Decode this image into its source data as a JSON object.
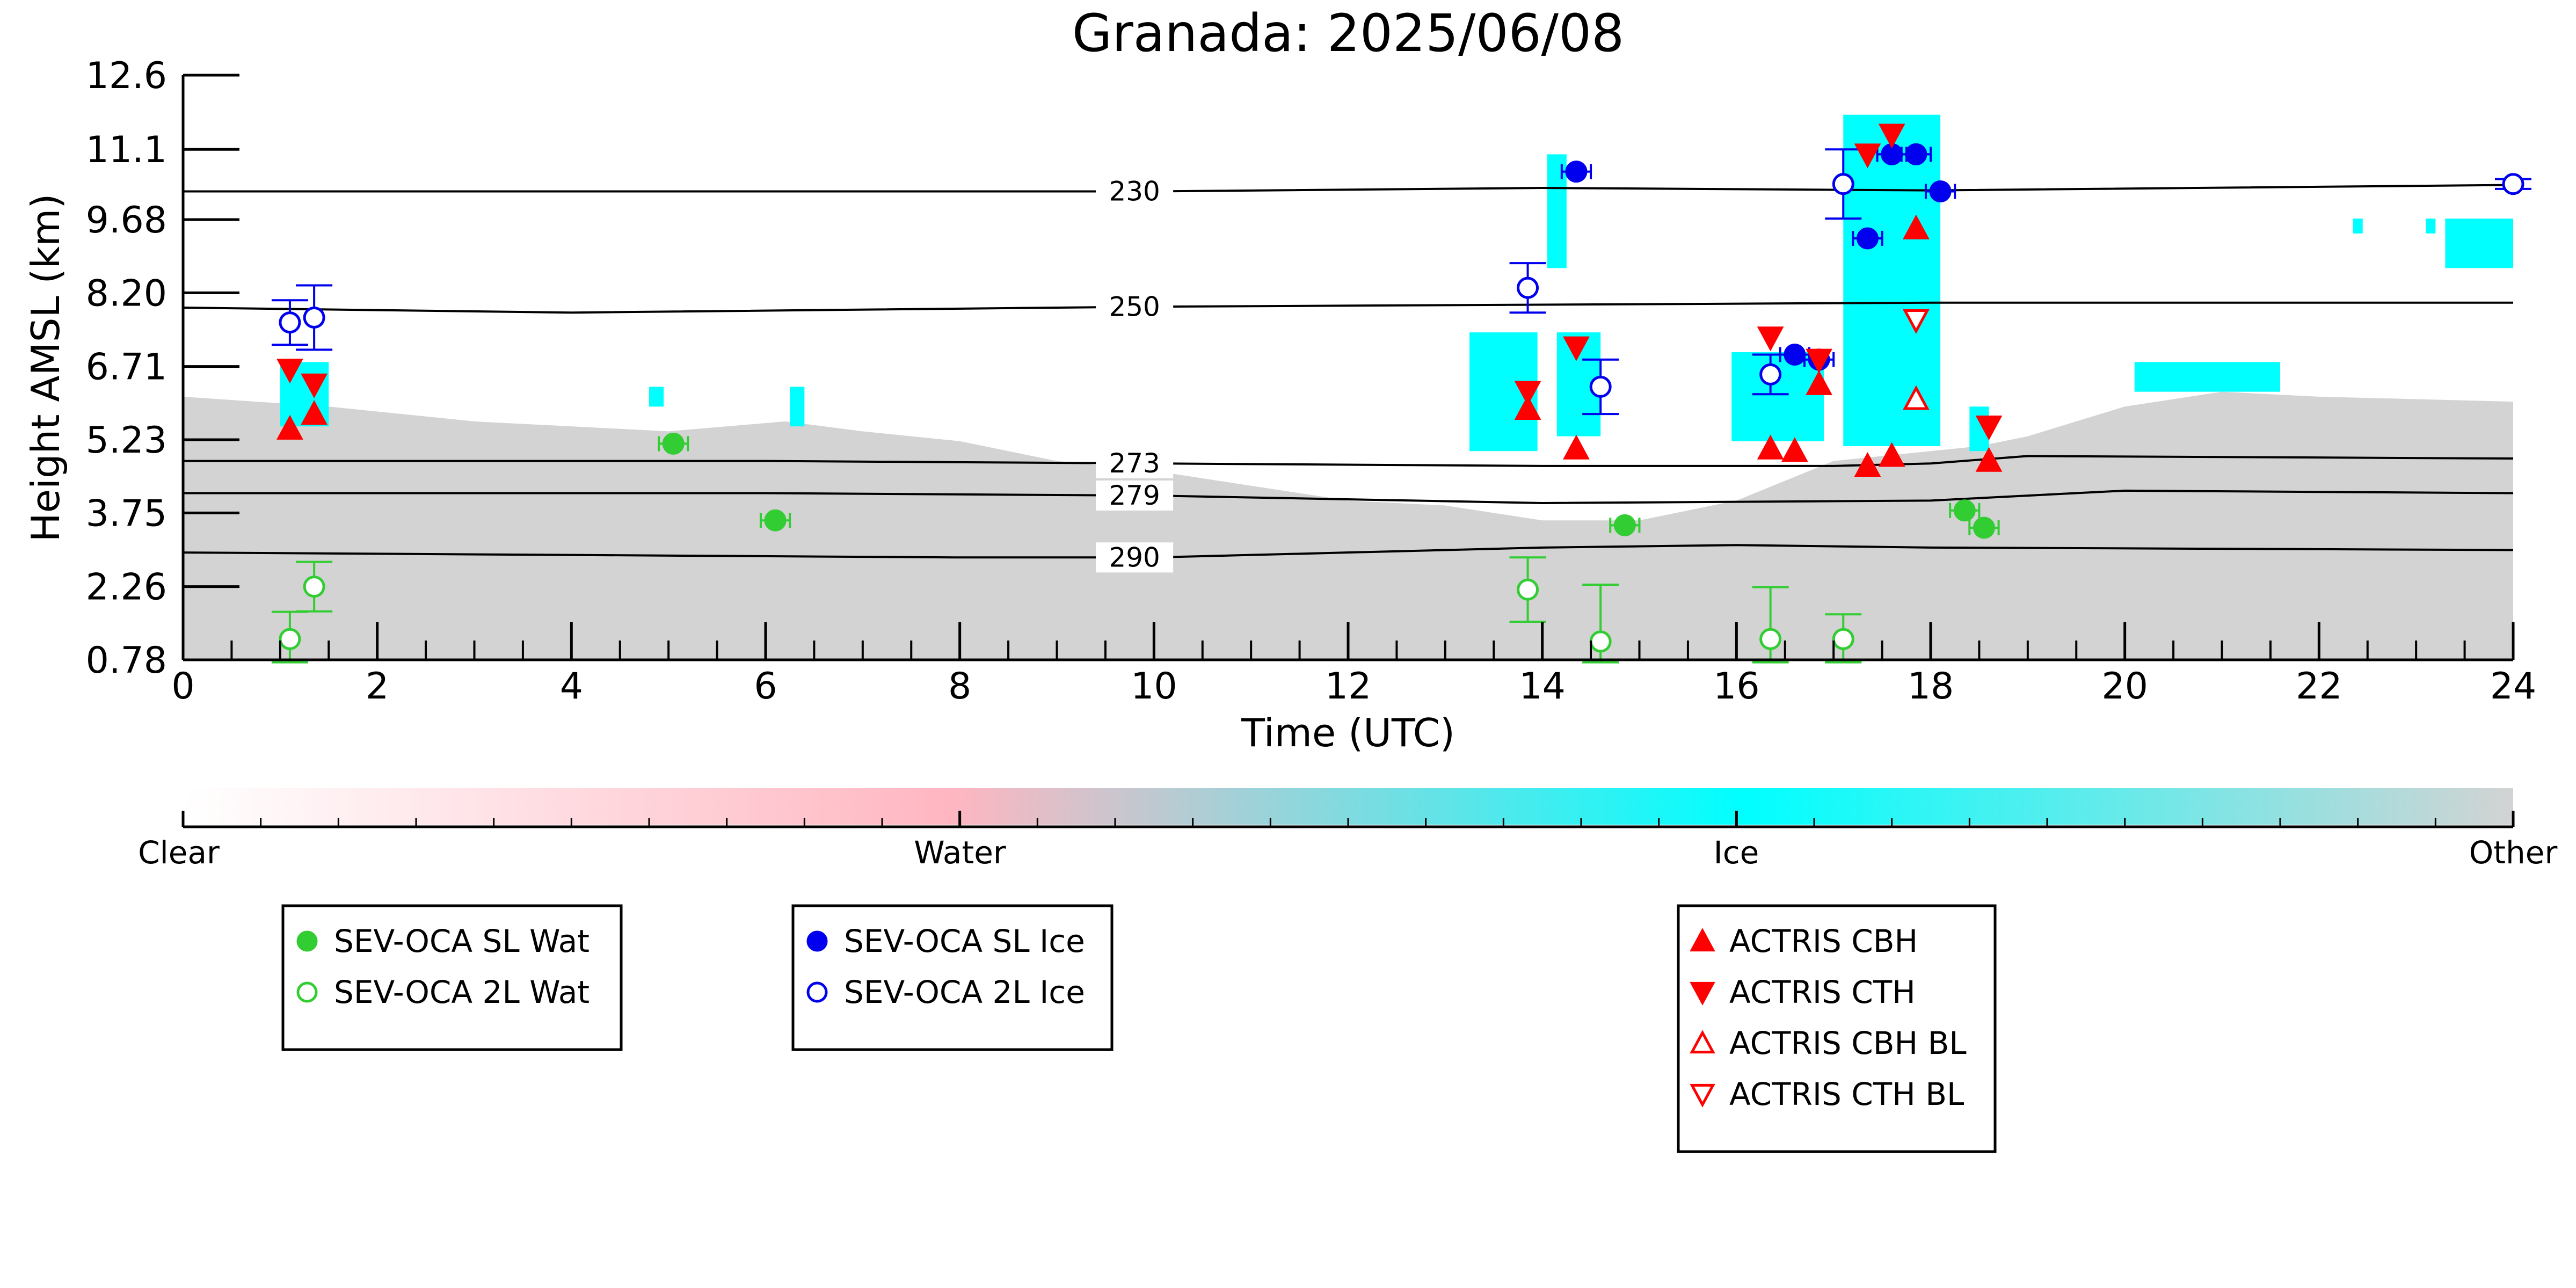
{
  "chart_data": {
    "type": "scatter",
    "title": "Granada: 2025/06/08",
    "xlabel": "Time (UTC)",
    "ylabel": "Height AMSL (km)",
    "xlim": [
      0,
      24
    ],
    "ylim": [
      0.78,
      12.6
    ],
    "xticks": [
      0,
      2,
      4,
      6,
      8,
      10,
      12,
      14,
      16,
      18,
      20,
      22,
      24
    ],
    "yticks": [
      0.78,
      2.26,
      3.75,
      5.23,
      6.71,
      8.2,
      9.68,
      11.1,
      12.6
    ],
    "ytick_labels": [
      "0.78",
      "2.26",
      "3.75",
      "5.23",
      "6.71",
      "8.20",
      "9.68",
      "11.1",
      "12.6"
    ],
    "grid": false,
    "background_field": {
      "description": "cloud phase classification",
      "classes": [
        "Clear",
        "Water",
        "Ice",
        "Other"
      ],
      "colors": {
        "Clear": "#ffffff",
        "Water": "#ffb6c1",
        "Ice": "#00ffff",
        "Other": "#d3d3d3"
      },
      "other_boundary_top_km": [
        [
          0.0,
          6.1
        ],
        [
          1.5,
          5.9
        ],
        [
          3.0,
          5.6
        ],
        [
          5.0,
          5.4
        ],
        [
          6.2,
          5.6
        ],
        [
          7.0,
          5.4
        ],
        [
          8.0,
          5.2
        ],
        [
          9.0,
          4.8
        ],
        [
          10.0,
          4.6
        ],
        [
          11.0,
          4.3
        ],
        [
          12.0,
          4.0
        ],
        [
          13.0,
          3.9
        ],
        [
          14.0,
          3.6
        ],
        [
          15.0,
          3.6
        ],
        [
          16.0,
          4.0
        ],
        [
          17.0,
          4.8
        ],
        [
          18.5,
          5.1
        ],
        [
          19.0,
          5.3
        ],
        [
          20.0,
          5.9
        ],
        [
          21.0,
          6.2
        ],
        [
          22.0,
          6.1
        ],
        [
          24.0,
          6.0
        ]
      ],
      "ice_regions": [
        {
          "x": [
            1.0,
            1.5
          ],
          "y": [
            5.5,
            6.8
          ]
        },
        {
          "x": [
            4.8,
            4.95
          ],
          "y": [
            5.9,
            6.3
          ]
        },
        {
          "x": [
            6.25,
            6.4
          ],
          "y": [
            5.5,
            6.3
          ]
        },
        {
          "x": [
            13.25,
            13.95
          ],
          "y": [
            5.0,
            7.4
          ]
        },
        {
          "x": [
            14.05,
            14.25
          ],
          "y": [
            8.7,
            11.0
          ]
        },
        {
          "x": [
            14.15,
            14.6
          ],
          "y": [
            5.3,
            7.4
          ]
        },
        {
          "x": [
            15.95,
            16.9
          ],
          "y": [
            5.2,
            7.0
          ]
        },
        {
          "x": [
            17.1,
            18.1
          ],
          "y": [
            5.1,
            11.8
          ]
        },
        {
          "x": [
            18.4,
            18.6
          ],
          "y": [
            5.0,
            5.9
          ]
        },
        {
          "x": [
            20.1,
            21.6
          ],
          "y": [
            6.2,
            6.8
          ]
        },
        {
          "x": [
            22.35,
            22.45
          ],
          "y": [
            9.4,
            9.7
          ]
        },
        {
          "x": [
            23.1,
            23.2
          ],
          "y": [
            9.4,
            9.7
          ]
        },
        {
          "x": [
            23.3,
            24.0
          ],
          "y": [
            8.7,
            9.7
          ]
        },
        {
          "x": [
            23.95,
            24.0
          ],
          "y": [
            10.2,
            10.5
          ]
        }
      ]
    },
    "isotherms": [
      {
        "label": "230",
        "label_x": 9.8,
        "points": [
          [
            0,
            10.25
          ],
          [
            10,
            10.25
          ],
          [
            14,
            10.32
          ],
          [
            18,
            10.27
          ],
          [
            24,
            10.38
          ]
        ]
      },
      {
        "label": "250",
        "label_x": 9.8,
        "points": [
          [
            0,
            7.9
          ],
          [
            4,
            7.8
          ],
          [
            10,
            7.92
          ],
          [
            14,
            7.96
          ],
          [
            18,
            8.0
          ],
          [
            24,
            8.0
          ]
        ]
      },
      {
        "label": "273",
        "label_x": 9.8,
        "points": [
          [
            0,
            4.8
          ],
          [
            6,
            4.8
          ],
          [
            10,
            4.75
          ],
          [
            14,
            4.7
          ],
          [
            17,
            4.7
          ],
          [
            18,
            4.75
          ],
          [
            19,
            4.9
          ],
          [
            24,
            4.85
          ]
        ]
      },
      {
        "label": "279",
        "label_x": 9.8,
        "points": [
          [
            0,
            4.15
          ],
          [
            6,
            4.15
          ],
          [
            10,
            4.1
          ],
          [
            14,
            3.95
          ],
          [
            18,
            4.0
          ],
          [
            20,
            4.2
          ],
          [
            24,
            4.15
          ]
        ]
      },
      {
        "label": "290",
        "label_x": 9.8,
        "points": [
          [
            0,
            2.95
          ],
          [
            8,
            2.85
          ],
          [
            10,
            2.85
          ],
          [
            14,
            3.05
          ],
          [
            16,
            3.1
          ],
          [
            18,
            3.05
          ],
          [
            24,
            3.0
          ]
        ]
      }
    ],
    "series": [
      {
        "name": "SEV-OCA SL Wat",
        "color": "#32cd32",
        "marker": "circle",
        "filled": true,
        "x": [
          5.05,
          6.1,
          14.85,
          18.35,
          18.55
        ],
        "y": [
          5.15,
          3.6,
          3.5,
          3.8,
          3.45
        ],
        "xerr": [
          0.15,
          0.15,
          0.15,
          0.15,
          0.15
        ]
      },
      {
        "name": "SEV-OCA 2L Wat",
        "color": "#32cd32",
        "marker": "circle",
        "filled": false,
        "x": [
          1.1,
          1.35,
          13.85,
          14.6,
          16.35,
          17.1
        ],
        "y": [
          1.2,
          2.26,
          2.2,
          1.15,
          1.2,
          1.2
        ],
        "yerr": [
          0.55,
          0.5,
          0.65,
          1.15,
          1.05,
          0.5
        ]
      },
      {
        "name": "SEV-OCA SL Ice",
        "color": "#0000ee",
        "marker": "circle",
        "filled": true,
        "x": [
          14.35,
          16.6,
          16.85,
          17.35,
          17.6,
          17.85,
          18.1
        ],
        "y": [
          10.65,
          6.95,
          6.85,
          9.3,
          11.0,
          11.0,
          10.25
        ],
        "xerr": [
          0.15,
          0.15,
          0.15,
          0.15,
          0.15,
          0.15,
          0.15
        ]
      },
      {
        "name": "SEV-OCA 2L Ice",
        "color": "#0000ee",
        "marker": "circle",
        "filled": false,
        "x": [
          1.1,
          1.35,
          13.85,
          14.6,
          16.35,
          17.1,
          24.0
        ],
        "y": [
          7.6,
          7.7,
          8.3,
          6.3,
          6.55,
          10.4,
          10.4
        ],
        "yerr": [
          0.45,
          0.65,
          0.5,
          0.55,
          0.4,
          0.7,
          0.1
        ]
      },
      {
        "name": "ACTRIS CBH",
        "color": "#ff0000",
        "marker": "triangle-up",
        "filled": true,
        "x": [
          1.1,
          1.35,
          13.85,
          14.35,
          16.35,
          16.6,
          16.85,
          17.35,
          17.6,
          17.85,
          18.6
        ],
        "y": [
          5.45,
          5.75,
          5.85,
          5.05,
          5.05,
          5.0,
          6.35,
          4.7,
          4.9,
          9.5,
          4.8
        ]
      },
      {
        "name": "ACTRIS CTH",
        "color": "#ff0000",
        "marker": "triangle-down",
        "filled": true,
        "x": [
          1.1,
          1.35,
          13.85,
          14.35,
          16.35,
          16.85,
          17.35,
          17.6,
          18.6
        ],
        "y": [
          6.65,
          6.35,
          6.2,
          7.1,
          7.3,
          6.85,
          11.0,
          11.4,
          5.5
        ]
      },
      {
        "name": "ACTRIS CBH BL",
        "color": "#ff0000",
        "marker": "triangle-up",
        "filled": false,
        "x": [
          17.85
        ],
        "y": [
          6.05
        ]
      },
      {
        "name": "ACTRIS CTH BL",
        "color": "#ff0000",
        "marker": "triangle-down",
        "filled": false,
        "x": [
          17.85
        ],
        "y": [
          7.65
        ]
      }
    ],
    "colorbar": {
      "labels": [
        "Clear",
        "Water",
        "Ice",
        "Other"
      ],
      "stops": [
        "#ffffff",
        "#ffb6c1",
        "#00ffff",
        "#d3d3d3"
      ]
    },
    "legends": [
      {
        "entries": [
          0,
          1
        ]
      },
      {
        "entries": [
          2,
          3
        ]
      },
      {
        "entries": [
          4,
          5,
          6,
          7
        ]
      }
    ]
  }
}
